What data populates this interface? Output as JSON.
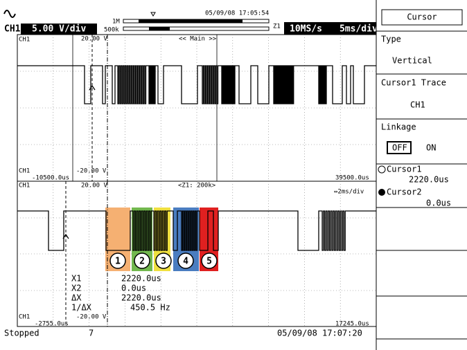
{
  "header": {
    "channel": "CH1",
    "volts": "5.00 V/div",
    "mem_top": "1M",
    "mem_bottom": "500k",
    "timestamp": "05/09/08 17:05:54",
    "zoom_tag": "Z1",
    "sample_rate": "10MS/s",
    "timebase": "5ms/div"
  },
  "upper": {
    "channel_top": "CH1",
    "vmax": "20.00 V",
    "label": "<< Main >>",
    "channel_bottom": "CH1",
    "t_start": "-10500.0us",
    "vmin": "-20.00 V",
    "t_end": "39500.0us"
  },
  "lower": {
    "channel_top": "CH1",
    "vmax": "20.00 V",
    "label": "<Z1: 200k>",
    "zoom_timebase": "↔2ms/div",
    "channel_bottom": "CH1",
    "t_start": "-2755.0us",
    "vmin": "-20.00 V",
    "t_end": "17245.0us",
    "measurements": [
      {
        "name": "X1",
        "value": "2220.0us"
      },
      {
        "name": "X2",
        "value": "0.0us"
      },
      {
        "name": "ΔX",
        "value": "2220.0us"
      },
      {
        "name": "1/ΔX",
        "value": "450.5 Hz"
      }
    ],
    "markers": [
      "1",
      "2",
      "3",
      "4",
      "5"
    ]
  },
  "status": {
    "state": "Stopped",
    "count": "7",
    "timestamp": "05/09/08 17:07:20"
  },
  "menu": {
    "title": "Cursor",
    "type_label": "Type",
    "type_value": "Vertical",
    "trace_label": "Cursor1 Trace",
    "trace_value": "CH1",
    "linkage_label": "Linkage",
    "linkage_off": "OFF",
    "linkage_on": "ON",
    "cursor1_label": "Cursor1",
    "cursor1_value": "2220.0us",
    "cursor2_label": "Cursor2",
    "cursor2_value": "0.0us"
  }
}
